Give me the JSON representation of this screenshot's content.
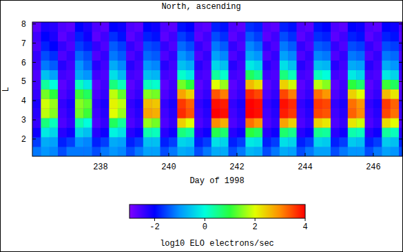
{
  "chart_data": {
    "type": "heatmap",
    "title": "North, ascending",
    "xlabel": "Day of 1998",
    "ylabel": "L",
    "xlim": [
      236,
      246.85
    ],
    "ylim": [
      1.1,
      8.1
    ],
    "xticks": [
      238,
      240,
      242,
      244,
      246
    ],
    "yticks": [
      2,
      3,
      4,
      5,
      6,
      7,
      8
    ],
    "x_edges": [
      236,
      236.25,
      236.5,
      236.75,
      237,
      237.25,
      237.5,
      237.75,
      238,
      238.25,
      238.5,
      238.75,
      239,
      239.25,
      239.5,
      239.75,
      240,
      240.25,
      240.5,
      240.75,
      241,
      241.25,
      241.5,
      241.75,
      242,
      242.25,
      242.5,
      242.75,
      243,
      243.25,
      243.5,
      243.75,
      244,
      244.25,
      244.5,
      244.75,
      245,
      245.25,
      245.5,
      245.75,
      246,
      246.25,
      246.5,
      246.75,
      246.85
    ],
    "y_edges": [
      1.1,
      1.6,
      2.1,
      2.6,
      3.1,
      3.6,
      4.1,
      4.6,
      5.1,
      5.6,
      6.1,
      6.6,
      7.1,
      7.6,
      8.1
    ],
    "cells": [
      [
        -1.2,
        -1.6,
        -2.1,
        -2.4,
        -2.3,
        -2.2,
        -2.4,
        -2.5,
        -2.6,
        -2.5,
        -2.4,
        -2.6,
        -2.5,
        -2.7
      ],
      [
        -1.0,
        -0.8,
        -0.2,
        0.6,
        1.8,
        1.9,
        1.4,
        0.4,
        -0.6,
        -1.2,
        -1.5,
        -1.8,
        -2.0,
        -2.2
      ],
      [
        -1.1,
        -0.9,
        -0.4,
        0.2,
        1.5,
        1.6,
        1.0,
        0.0,
        -0.9,
        -1.4,
        -1.7,
        -2.0,
        -2.2,
        -2.3
      ],
      [
        -1.5,
        -1.8,
        -2.3,
        -2.6,
        -2.5,
        -2.4,
        -2.6,
        -2.7,
        -2.5,
        -2.3,
        -2.6,
        -2.4,
        -2.7,
        -2.6
      ],
      [
        -1.2,
        -1.6,
        -2.1,
        -2.4,
        -2.3,
        -2.2,
        -2.4,
        -2.5,
        -2.6,
        -2.5,
        -2.4,
        -2.6,
        -2.5,
        -2.7
      ],
      [
        -1.2,
        -1.0,
        -0.4,
        0.3,
        1.4,
        1.5,
        1.1,
        0.2,
        -0.8,
        -1.0,
        -1.3,
        -1.6,
        -1.8,
        -2.0
      ],
      [
        -1.2,
        -1.1,
        -0.6,
        0.0,
        1.1,
        1.3,
        0.8,
        -0.2,
        -1.0,
        -1.3,
        -1.5,
        -1.8,
        -2.1,
        -2.2
      ],
      [
        -1.5,
        -1.8,
        -2.3,
        -2.6,
        -2.5,
        -2.4,
        -2.6,
        -2.7,
        -2.5,
        -2.3,
        -2.6,
        -2.4,
        -2.7,
        -2.6
      ],
      [
        -1.2,
        -1.6,
        -2.1,
        -2.4,
        -2.3,
        -2.2,
        -2.4,
        -2.5,
        -2.6,
        -2.5,
        -2.4,
        -2.6,
        -2.5,
        -2.7
      ],
      [
        -1.0,
        -0.8,
        -0.1,
        0.8,
        2.0,
        2.1,
        1.8,
        0.6,
        -0.3,
        -0.8,
        -1.2,
        -1.4,
        -1.7,
        -2.0
      ],
      [
        -1.1,
        -0.9,
        -0.3,
        0.4,
        1.6,
        1.8,
        1.3,
        0.2,
        -0.7,
        -1.1,
        -1.4,
        -1.6,
        -1.9,
        -2.1
      ],
      [
        -1.5,
        -1.8,
        -2.3,
        -2.6,
        -2.5,
        -2.4,
        -2.6,
        -2.7,
        -2.5,
        -2.3,
        -2.6,
        -2.4,
        -2.7,
        -2.6
      ],
      [
        -1.2,
        -1.6,
        -2.1,
        -2.4,
        -2.3,
        -2.2,
        -2.4,
        -2.5,
        -2.6,
        -2.5,
        -2.4,
        -2.6,
        -2.5,
        -2.7
      ],
      [
        -0.9,
        -0.6,
        0.3,
        1.6,
        2.8,
        2.6,
        1.5,
        0.2,
        -0.6,
        -1.0,
        -1.3,
        -1.5,
        -1.8,
        -2.0
      ],
      [
        -0.9,
        -0.6,
        0.2,
        1.4,
        2.7,
        2.5,
        1.4,
        0.1,
        -0.7,
        -1.1,
        -1.4,
        -1.6,
        -1.9,
        -2.1
      ],
      [
        -1.5,
        -1.8,
        -2.3,
        -2.6,
        -2.5,
        -2.4,
        -2.6,
        -2.7,
        -2.5,
        -2.3,
        -2.6,
        -2.4,
        -2.7,
        -2.6
      ],
      [
        -1.2,
        -1.6,
        -2.1,
        -2.4,
        -2.3,
        -2.2,
        -2.4,
        -2.5,
        -2.6,
        -2.5,
        -2.4,
        -2.6,
        -2.5,
        -2.7
      ],
      [
        -0.8,
        -0.4,
        0.6,
        2.4,
        3.7,
        3.6,
        2.8,
        1.4,
        0.1,
        -0.6,
        -1.0,
        -1.3,
        -1.6,
        -1.9
      ],
      [
        -0.9,
        -0.5,
        0.4,
        2.0,
        3.4,
        3.3,
        2.4,
        1.0,
        -0.2,
        -0.8,
        -1.2,
        -1.5,
        -1.8,
        -2.0
      ],
      [
        -1.5,
        -1.8,
        -2.3,
        -2.6,
        -2.5,
        -2.4,
        -2.6,
        -2.7,
        -2.5,
        -2.3,
        -2.6,
        -2.4,
        -2.7,
        -2.6
      ],
      [
        -1.2,
        -1.6,
        -2.1,
        -2.4,
        -2.3,
        -2.2,
        -2.4,
        -2.5,
        -2.6,
        -2.5,
        -2.4,
        -2.6,
        -2.5,
        -2.7
      ],
      [
        -0.8,
        -0.3,
        0.9,
        3.0,
        4.0,
        3.9,
        3.4,
        2.0,
        0.4,
        -0.4,
        -0.9,
        -1.2,
        -1.5,
        -1.8
      ],
      [
        -0.8,
        -0.4,
        0.7,
        2.7,
        3.9,
        3.8,
        3.1,
        1.6,
        0.1,
        -0.6,
        -1.1,
        -1.4,
        -1.7,
        -1.9
      ],
      [
        -1.5,
        -1.8,
        -2.3,
        -2.6,
        -2.5,
        -2.4,
        -2.6,
        -2.7,
        -2.5,
        -2.3,
        -2.6,
        -2.4,
        -2.7,
        -2.6
      ],
      [
        -1.2,
        -1.6,
        -2.1,
        -2.4,
        -2.3,
        -2.2,
        -2.4,
        -2.5,
        -2.6,
        -2.5,
        -2.4,
        -2.6,
        -2.5,
        -2.7
      ],
      [
        -0.7,
        -0.2,
        1.0,
        3.2,
        4.0,
        4.0,
        3.7,
        2.6,
        0.8,
        -0.2,
        -0.8,
        -1.1,
        -1.4,
        -1.7
      ],
      [
        -0.8,
        -0.3,
        0.8,
        2.9,
        3.9,
        3.9,
        3.5,
        2.3,
        0.5,
        -0.4,
        -1.0,
        -1.3,
        -1.6,
        -1.8
      ],
      [
        -1.5,
        -1.8,
        -2.3,
        -2.6,
        -2.5,
        -2.4,
        -2.6,
        -2.7,
        -2.5,
        -2.3,
        -2.6,
        -2.4,
        -2.7,
        -2.6
      ],
      [
        -1.2,
        -1.6,
        -2.1,
        -2.4,
        -2.3,
        -2.2,
        -2.4,
        -2.5,
        -2.6,
        -2.5,
        -2.4,
        -2.6,
        -2.5,
        -2.7
      ],
      [
        -0.8,
        -0.3,
        0.7,
        2.8,
        3.8,
        3.9,
        3.5,
        2.4,
        0.6,
        -0.3,
        -0.9,
        -1.2,
        -1.5,
        -1.8
      ],
      [
        -0.9,
        -0.4,
        0.5,
        2.4,
        3.6,
        3.7,
        3.1,
        1.9,
        0.2,
        -0.6,
        -1.1,
        -1.4,
        -1.7,
        -1.9
      ],
      [
        -1.5,
        -1.8,
        -2.3,
        -2.6,
        -2.5,
        -2.4,
        -2.6,
        -2.7,
        -2.5,
        -2.3,
        -2.6,
        -2.4,
        -2.7,
        -2.6
      ],
      [
        -1.2,
        -1.6,
        -2.1,
        -2.4,
        -2.3,
        -2.2,
        -2.4,
        -2.5,
        -2.6,
        -2.5,
        -2.4,
        -2.6,
        -2.5,
        -2.7
      ],
      [
        -0.9,
        -0.4,
        0.5,
        2.4,
        3.5,
        3.6,
        3.2,
        1.8,
        0.2,
        -0.6,
        -1.1,
        -1.4,
        -1.7,
        -1.9
      ],
      [
        -0.9,
        -0.5,
        0.4,
        2.2,
        3.4,
        3.5,
        2.9,
        1.5,
        0.0,
        -0.7,
        -1.2,
        -1.5,
        -1.8,
        -2.0
      ],
      [
        -1.5,
        -1.8,
        -2.3,
        -2.6,
        -2.5,
        -2.4,
        -2.6,
        -2.7,
        -2.5,
        -2.3,
        -2.6,
        -2.4,
        -2.7,
        -2.6
      ],
      [
        -1.2,
        -1.6,
        -2.1,
        -2.4,
        -2.3,
        -2.2,
        -2.4,
        -2.5,
        -2.6,
        -2.5,
        -2.4,
        -2.6,
        -2.5,
        -2.7
      ],
      [
        -1.0,
        -0.5,
        0.3,
        2.2,
        3.3,
        3.2,
        2.4,
        1.0,
        -0.2,
        -0.8,
        -1.2,
        -1.5,
        -1.8,
        -2.0
      ],
      [
        -1.0,
        -0.6,
        0.2,
        1.9,
        3.0,
        2.9,
        2.0,
        0.7,
        -0.4,
        -0.9,
        -1.3,
        -1.6,
        -1.9,
        -2.1
      ],
      [
        -1.5,
        -1.8,
        -2.3,
        -2.6,
        -2.5,
        -2.4,
        -2.6,
        -2.7,
        -2.5,
        -2.3,
        -2.6,
        -2.4,
        -2.7,
        -2.6
      ],
      [
        -1.2,
        -1.6,
        -2.1,
        -2.4,
        -2.3,
        -2.2,
        -2.4,
        -2.5,
        -2.6,
        -2.5,
        -2.4,
        -2.6,
        -2.5,
        -2.7
      ],
      [
        -0.9,
        -0.5,
        0.4,
        2.3,
        3.5,
        3.6,
        2.6,
        1.1,
        -0.2,
        -0.8,
        -1.2,
        -1.5,
        -1.8,
        -2.0
      ],
      [
        -1.0,
        -0.6,
        0.2,
        2.0,
        3.2,
        3.3,
        2.2,
        0.8,
        -0.4,
        -1.0,
        -1.3,
        -1.6,
        -1.9,
        -2.1
      ],
      [
        -1.5,
        -1.8,
        -2.3,
        -2.6,
        -2.5,
        -2.4,
        -2.6,
        -2.7,
        -2.5,
        -2.3,
        -2.6,
        -2.4,
        -2.7,
        -2.6
      ]
    ],
    "colorbar": {
      "label": "log10 ELO electrons/sec",
      "range": [
        -3,
        4
      ],
      "ticks": [
        -2,
        0,
        2,
        4
      ]
    }
  }
}
